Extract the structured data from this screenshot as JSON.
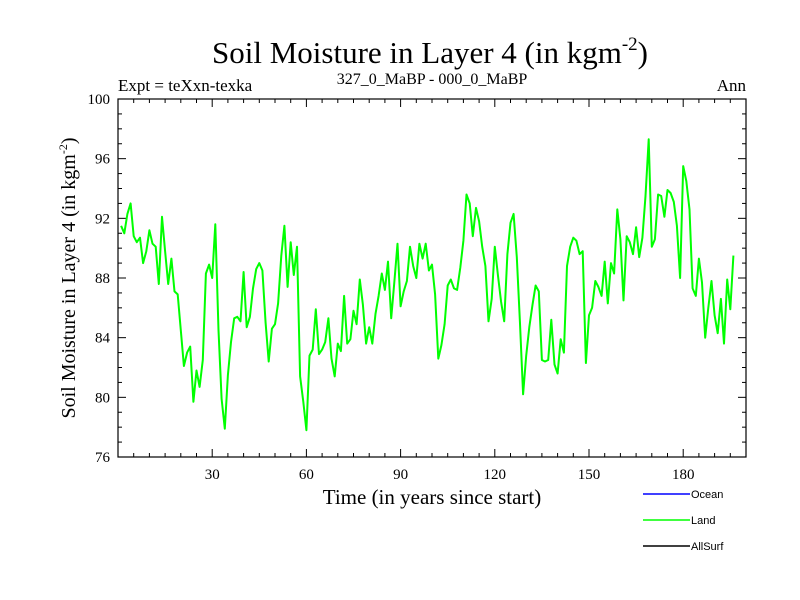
{
  "chart_data": {
    "type": "line",
    "title": "Soil Moisture in Layer 4 (in kgm",
    "title_superscript": "-2",
    "title_suffix": ")",
    "subtitle_left": "Expt = teXxn-texka",
    "subtitle_center": "327_0_MaBP - 000_0_MaBP",
    "subtitle_right": "Ann",
    "xlabel": "Time (in years since start)",
    "ylabel": "Soil Moisture in Layer 4 (in kgm",
    "ylabel_superscript": "-2",
    "ylabel_suffix": ")",
    "xlim": [
      0,
      200
    ],
    "ylim": [
      76,
      100
    ],
    "x_ticks": [
      30,
      60,
      90,
      120,
      150,
      180
    ],
    "y_ticks": [
      76,
      80,
      84,
      88,
      92,
      96,
      100
    ],
    "legend": [
      {
        "name": "Ocean",
        "color": "#0000ff"
      },
      {
        "name": "Land",
        "color": "#00ff00"
      },
      {
        "name": "AllSurf",
        "color": "#000000"
      }
    ],
    "series": [
      {
        "name": "Land",
        "color": "#00ff00",
        "x_start": 1,
        "x_step": 1,
        "values": [
          91.5,
          91.0,
          92.3,
          93.0,
          90.8,
          90.4,
          90.7,
          89.0,
          89.8,
          91.2,
          90.3,
          90.1,
          87.6,
          92.1,
          89.8,
          87.6,
          89.3,
          87.1,
          86.9,
          84.5,
          82.1,
          83.0,
          83.4,
          79.7,
          81.8,
          80.7,
          82.5,
          88.3,
          88.9,
          88.0,
          91.6,
          84.5,
          79.9,
          77.9,
          81.5,
          83.7,
          85.3,
          85.4,
          85.1,
          88.4,
          84.7,
          85.4,
          87.3,
          88.6,
          89.0,
          88.5,
          85.0,
          82.4,
          84.6,
          84.9,
          86.3,
          89.5,
          91.5,
          87.4,
          90.4,
          88.2,
          90.1,
          81.4,
          79.7,
          77.8,
          82.8,
          83.2,
          85.9,
          82.9,
          83.2,
          83.7,
          85.3,
          82.6,
          81.4,
          83.6,
          83.1,
          86.8,
          83.6,
          83.9,
          85.8,
          84.9,
          87.9,
          86.2,
          83.6,
          84.7,
          83.6,
          85.6,
          86.8,
          88.3,
          87.2,
          89.1,
          85.3,
          87.7,
          90.3,
          86.1,
          87.1,
          87.8,
          90.1,
          88.8,
          88.0,
          90.3,
          89.3,
          90.3,
          88.5,
          88.9,
          86.9,
          82.6,
          83.5,
          84.9,
          87.5,
          87.9,
          87.3,
          87.2,
          88.7,
          90.5,
          93.6,
          93.0,
          90.8,
          92.7,
          91.8,
          90.1,
          88.8,
          85.1,
          86.6,
          90.1,
          88.2,
          86.4,
          85.1,
          89.6,
          91.7,
          92.3,
          89.4,
          85.1,
          80.2,
          82.8,
          84.7,
          86.2,
          87.5,
          87.1,
          82.5,
          82.4,
          82.5,
          85.2,
          82.2,
          81.6,
          83.9,
          83.0,
          88.8,
          90.1,
          90.7,
          90.5,
          89.6,
          89.8,
          82.3,
          85.5,
          86.0,
          87.8,
          87.4,
          86.8,
          89.1,
          86.3,
          89.0,
          88.3,
          92.6,
          90.6,
          86.5,
          90.8,
          90.4,
          89.6,
          91.4,
          89.4,
          90.7,
          93.5,
          97.3,
          90.1,
          90.6,
          93.6,
          93.5,
          92.1,
          93.9,
          93.7,
          93.1,
          91.5,
          88.0,
          95.5,
          94.5,
          92.6,
          87.3,
          86.8,
          89.3,
          87.7,
          84.0,
          86.0,
          87.8,
          85.5,
          84.3,
          86.6,
          83.6,
          87.9,
          85.9,
          89.5
        ]
      }
    ]
  }
}
